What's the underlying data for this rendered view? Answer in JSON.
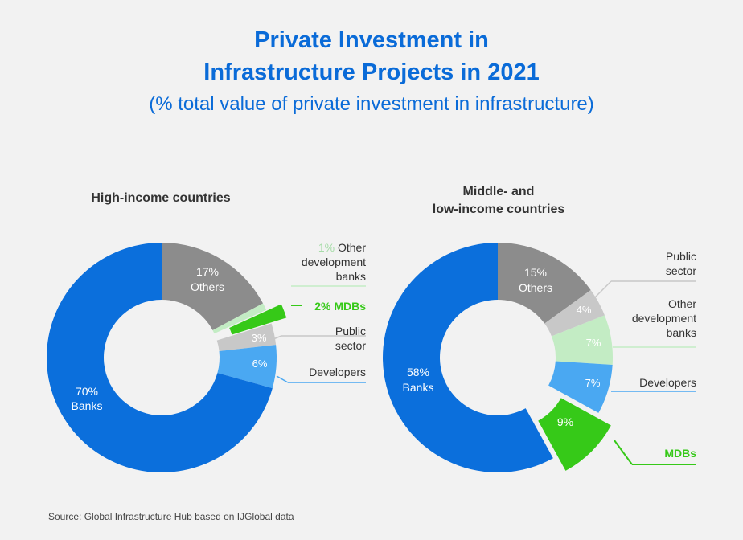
{
  "title_line1": "Private Investment in",
  "title_line2": "Infrastructure Projects in 2021",
  "subtitle": "(% total value of private investment in infrastructure)",
  "source": "Source: Global Infrastructure Hub based on IJGlobal data",
  "colors": {
    "banks": "#0b6fdc",
    "others": "#8c8c8c",
    "other_dev_banks": "#c3ecc4",
    "mdbs": "#36c918",
    "public_sector": "#c8c8c8",
    "developers": "#4aa8f2"
  },
  "chart_data": [
    {
      "type": "pie",
      "title": "High-income countries",
      "slices": [
        {
          "label": "Others",
          "value": 17,
          "value_text": "17%",
          "color_key": "others"
        },
        {
          "label": "Other development banks",
          "value": 1,
          "value_text": "1%",
          "color_key": "other_dev_banks"
        },
        {
          "label": "MDBs",
          "value": 2,
          "value_text": "2%",
          "color_key": "mdbs",
          "exploded": true
        },
        {
          "label": "Public sector",
          "value": 3,
          "value_text": "3%",
          "color_key": "public_sector"
        },
        {
          "label": "Developers",
          "value": 6,
          "value_text": "6%",
          "color_key": "developers"
        },
        {
          "label": "Banks",
          "value": 70,
          "value_text": "70%",
          "color_key": "banks"
        }
      ]
    },
    {
      "type": "pie",
      "title": "Middle- and low-income countries",
      "slices": [
        {
          "label": "Others",
          "value": 15,
          "value_text": "15%",
          "color_key": "others"
        },
        {
          "label": "Public sector",
          "value": 4,
          "value_text": "4%",
          "color_key": "public_sector"
        },
        {
          "label": "Other development banks",
          "value": 7,
          "value_text": "7%",
          "color_key": "other_dev_banks"
        },
        {
          "label": "Developers",
          "value": 7,
          "value_text": "7%",
          "color_key": "developers"
        },
        {
          "label": "MDBs",
          "value": 9,
          "value_text": "9%",
          "color_key": "mdbs",
          "exploded": true
        },
        {
          "label": "Banks",
          "value": 58,
          "value_text": "58%",
          "color_key": "banks"
        }
      ]
    }
  ],
  "labels": {
    "c1": {
      "others_pct": "17%",
      "others": "Others",
      "banks_pct": "70%",
      "banks": "Banks",
      "public_pct": "3%",
      "developers_pct": "6%",
      "odb_pct": "1%",
      "odb_l1": "Other",
      "odb_l2": "development",
      "odb_l3": "banks",
      "mdb": "2% MDBs",
      "public_l1": "Public",
      "public_l2": "sector",
      "developers": "Developers"
    },
    "c2": {
      "title_l1": "Middle- and",
      "title_l2": "low-income countries",
      "others_pct": "15%",
      "others": "Others",
      "banks_pct": "58%",
      "banks": "Banks",
      "public_pct": "4%",
      "odb_pct": "7%",
      "developers_pct": "7%",
      "mdb_pct": "9%",
      "public_l1": "Public",
      "public_l2": "sector",
      "odb_l1": "Other",
      "odb_l2": "development",
      "odb_l3": "banks",
      "developers": "Developers",
      "mdb": "MDBs"
    }
  }
}
